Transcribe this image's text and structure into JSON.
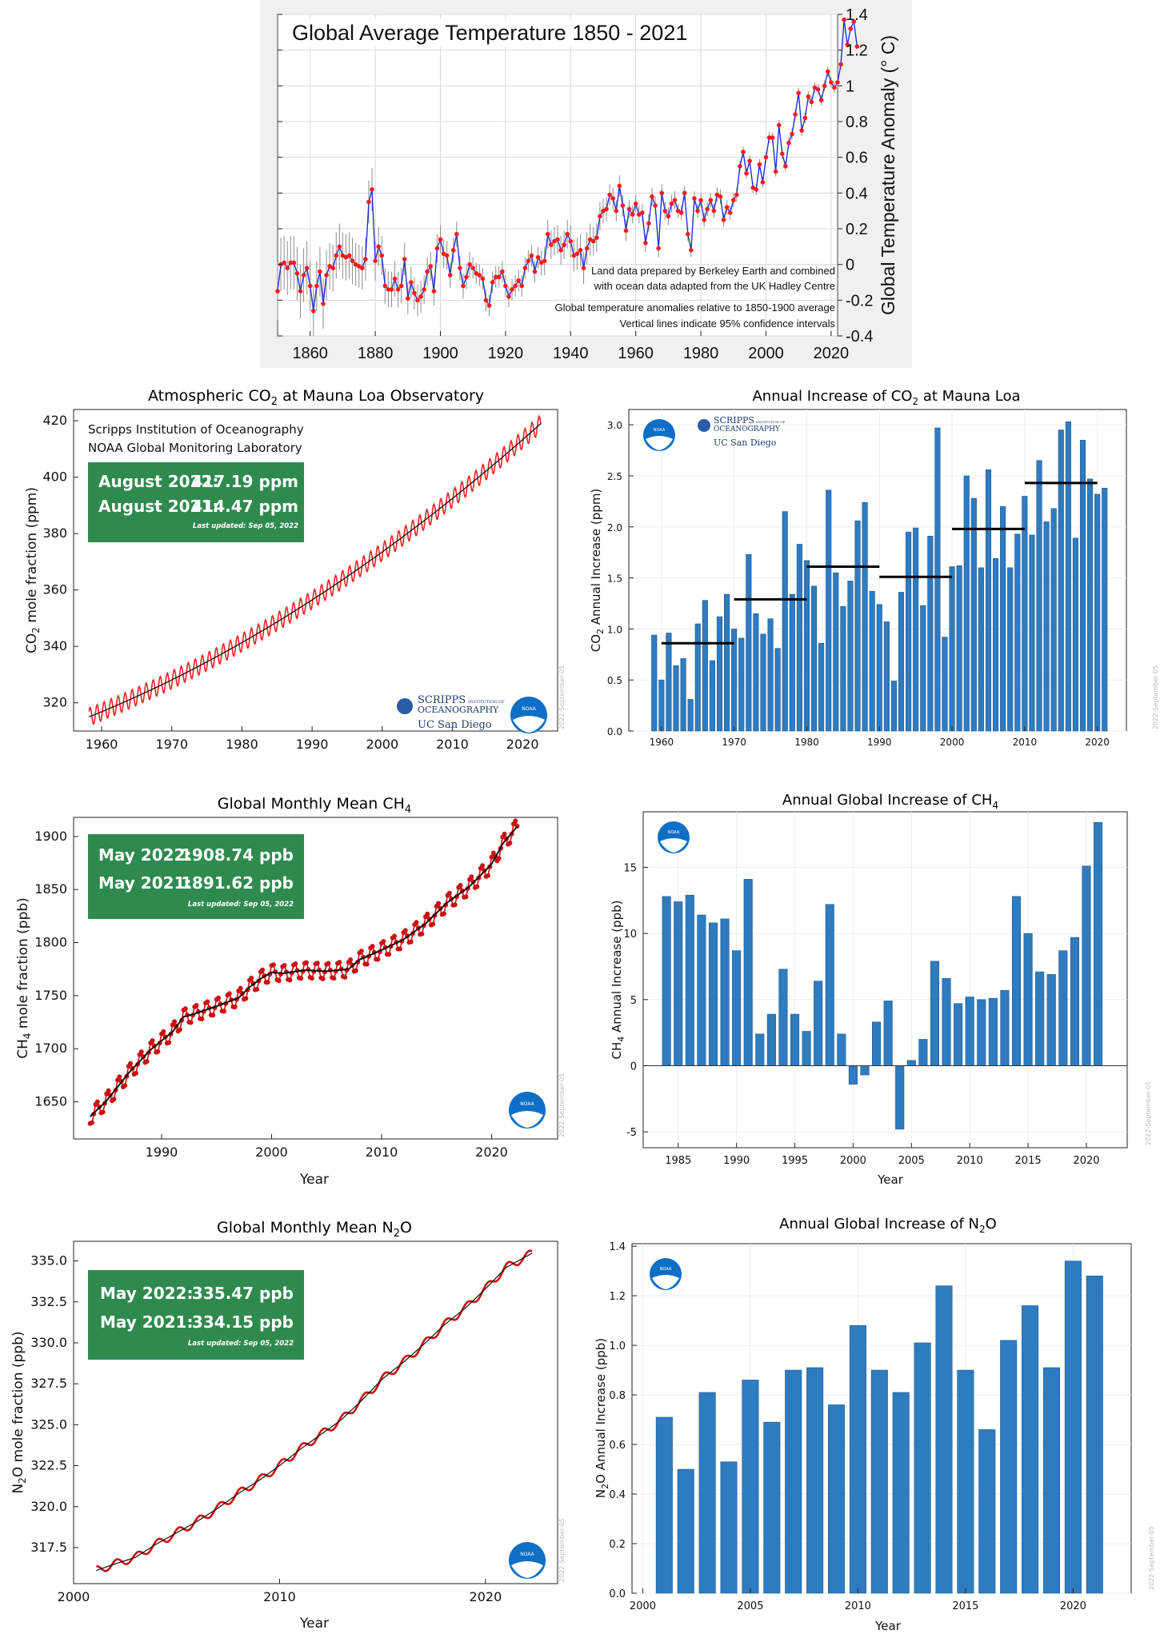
{
  "colors": {
    "temp_line": "#1f33d9",
    "temp_point": "#ff1a1a",
    "co2_red": "#ee2222",
    "bar_blue": "#2f7bbf",
    "green_box": "#2f8a4e",
    "noaa_blue": "#0f6ec6",
    "temp_bg": "#f0f0f0"
  },
  "institutions": {
    "scripps": "Scripps Institution of Oceanography",
    "noaa_gml": "NOAA Global Monitoring Laboratory"
  },
  "logos": {
    "scripps_text": "SCRIPPS",
    "scripps_sub": "OCEANOGRAPHY",
    "scripps_small": "INSTITUTION OF",
    "ucsd_text": "UC San Diego",
    "noaa_text": "NOAA"
  },
  "updated_stamp": "2022-September-05",
  "chart_data": [
    {
      "id": "temp",
      "type": "line",
      "title": "Global Average Temperature 1850 - 2021",
      "ylabel": "Global Temperature Anomaly (° C)",
      "xlim": [
        1850,
        2022
      ],
      "ylim": [
        -0.4,
        1.4
      ],
      "xticks": [
        "1860",
        "1880",
        "1900",
        "1920",
        "1940",
        "1960",
        "1980",
        "2000",
        "2020"
      ],
      "yticks": [
        "-0.4",
        "-0.2",
        "0",
        "0.2",
        "0.4",
        "0.6",
        "0.8",
        "1",
        "1.2",
        "1.4"
      ],
      "annotations": [
        "Land data prepared by Berkeley Earth and combined",
        "with ocean data adapted from the UK Hadley Centre",
        "Global temperature anomalies relative to 1850-1900 average",
        "Vertical lines indicate 95% confidence intervals"
      ],
      "start_year": 1850,
      "values": [
        -0.15,
        0.0,
        0.01,
        -0.02,
        0.01,
        0.01,
        -0.05,
        -0.15,
        -0.06,
        -0.02,
        -0.12,
        -0.26,
        -0.12,
        -0.04,
        -0.22,
        -0.06,
        -0.01,
        -0.02,
        0.05,
        0.1,
        0.05,
        0.04,
        0.05,
        0.02,
        0.0,
        -0.01,
        -0.02,
        0.03,
        0.35,
        0.42,
        0.02,
        0.1,
        0.05,
        -0.12,
        -0.14,
        -0.14,
        -0.08,
        -0.14,
        -0.12,
        0.03,
        -0.19,
        -0.1,
        -0.16,
        -0.2,
        -0.18,
        -0.14,
        -0.04,
        -0.01,
        -0.15,
        0.09,
        0.14,
        0.06,
        0.05,
        -0.06,
        0.08,
        0.17,
        -0.02,
        -0.12,
        -0.07,
        0.0,
        -0.02,
        -0.05,
        -0.06,
        -0.08,
        -0.2,
        -0.23,
        -0.1,
        -0.07,
        -0.07,
        -0.04,
        -0.12,
        -0.18,
        -0.14,
        -0.12,
        -0.09,
        -0.12,
        -0.02,
        0.02,
        0.05,
        -0.04,
        0.04,
        0.01,
        0.02,
        0.17,
        0.11,
        0.13,
        0.14,
        0.08,
        0.11,
        0.17,
        0.13,
        0.05,
        0.06,
        0.08,
        -0.02,
        0.09,
        0.14,
        0.13,
        0.15,
        0.27,
        0.3,
        0.31,
        0.39,
        0.37,
        0.3,
        0.44,
        0.33,
        0.19,
        0.31,
        0.28,
        0.34,
        0.28,
        0.29,
        0.12,
        0.23,
        0.38,
        0.33,
        0.09,
        0.4,
        0.3,
        0.27,
        0.34,
        0.36,
        0.3,
        0.29,
        0.4,
        0.17,
        0.08,
        0.37,
        0.3,
        0.36,
        0.25,
        0.31,
        0.36,
        0.3,
        0.39,
        0.38,
        0.25,
        0.32,
        0.29,
        0.36,
        0.39,
        0.55,
        0.63,
        0.51,
        0.58,
        0.43,
        0.42,
        0.56,
        0.46,
        0.6,
        0.71,
        0.71,
        0.52,
        0.78,
        0.62,
        0.55,
        0.68,
        0.73,
        0.84,
        0.96,
        0.75,
        0.82,
        0.94,
        0.91,
        0.99,
        0.98,
        0.92,
        1.0,
        1.08,
        1.02,
        0.99,
        1.02,
        1.12,
        1.37,
        1.23,
        1.32,
        1.36,
        1.22
      ],
      "ci": [
        0.16,
        0.15,
        0.15,
        0.15,
        0.15,
        0.15,
        0.15,
        0.15,
        0.15,
        0.15,
        0.14,
        0.14,
        0.14,
        0.14,
        0.14,
        0.14,
        0.13,
        0.13,
        0.13,
        0.13,
        0.13,
        0.13,
        0.13,
        0.13,
        0.12,
        0.12,
        0.12,
        0.12,
        0.12,
        0.12,
        0.11,
        0.11,
        0.11,
        0.1,
        0.1,
        0.1,
        0.1,
        0.1,
        0.1,
        0.09,
        0.09,
        0.09,
        0.09,
        0.09,
        0.09,
        0.08,
        0.08,
        0.08,
        0.08,
        0.08,
        0.08,
        0.08,
        0.08,
        0.07,
        0.07,
        0.07,
        0.07,
        0.07,
        0.07,
        0.07,
        0.06,
        0.06,
        0.06,
        0.06,
        0.06,
        0.06,
        0.06,
        0.06,
        0.06,
        0.06,
        0.06,
        0.06,
        0.06,
        0.06,
        0.06,
        0.06,
        0.06,
        0.06,
        0.06,
        0.06,
        0.06,
        0.07,
        0.08,
        0.08,
        0.08,
        0.08,
        0.08,
        0.08,
        0.08,
        0.08,
        0.09,
        0.09,
        0.09,
        0.09,
        0.09,
        0.09,
        0.09,
        0.08,
        0.08,
        0.08,
        0.07,
        0.07,
        0.06,
        0.06,
        0.06,
        0.06,
        0.06,
        0.06,
        0.05,
        0.05,
        0.05,
        0.05,
        0.05,
        0.05,
        0.05,
        0.05,
        0.05,
        0.05,
        0.05,
        0.05,
        0.05,
        0.05,
        0.05,
        0.04,
        0.04,
        0.04,
        0.04,
        0.04,
        0.04,
        0.04,
        0.04,
        0.04,
        0.04,
        0.04,
        0.04,
        0.04,
        0.04,
        0.04,
        0.04,
        0.04,
        0.04,
        0.04,
        0.03,
        0.03,
        0.03,
        0.03,
        0.03,
        0.03,
        0.03,
        0.03,
        0.03,
        0.03,
        0.03,
        0.03,
        0.03,
        0.03,
        0.03,
        0.03,
        0.03,
        0.03,
        0.03,
        0.03,
        0.03,
        0.03,
        0.03,
        0.03,
        0.03,
        0.03,
        0.03,
        0.03,
        0.03,
        0.03,
        0.03,
        0.03
      ]
    },
    {
      "id": "co2",
      "type": "line",
      "title_pre": "Atmospheric CO",
      "title_sub": "2",
      "title_post": " at Mauna Loa Observatory",
      "ylabel_pre": "CO",
      "ylabel_sub": "2",
      "ylabel_post": " mole fraction (ppm)",
      "xlim": [
        1956,
        2025
      ],
      "ylim": [
        310,
        424
      ],
      "xticks": [
        "1960",
        "1970",
        "1980",
        "1990",
        "2000",
        "2010",
        "2020"
      ],
      "yticks": [
        "320",
        "340",
        "360",
        "380",
        "400",
        "420"
      ],
      "series": [
        {
          "name": "monthly",
          "start": 1958.2,
          "end": 2022.6,
          "base_start": 315.0,
          "base_end": 419.0,
          "seasonal_amplitude": 3.2
        },
        {
          "name": "trend"
        }
      ],
      "box": {
        "line1_label": "August 2022:",
        "line1_value": "417.19 ppm",
        "line2_label": "August 2021:",
        "line2_value": "414.47 ppm",
        "updated": "Last updated: Sep 05, 2022"
      }
    },
    {
      "id": "co2inc",
      "type": "bar",
      "title_pre": "Annual Increase of CO",
      "title_sub": "2",
      "title_post": " at Mauna Loa",
      "ylabel_pre": "CO",
      "ylabel_sub": "2",
      "ylabel_post": " Annual Increase (ppm)",
      "xlim": [
        1955.5,
        2024
      ],
      "ylim": [
        0,
        3.15
      ],
      "xticks": [
        "1960",
        "1970",
        "1980",
        "1990",
        "2000",
        "2010",
        "2020"
      ],
      "yticks": [
        "0.0",
        "0.5",
        "1.0",
        "1.5",
        "2.0",
        "2.5",
        "3.0"
      ],
      "start_year": 1959,
      "values": [
        0.94,
        0.5,
        0.96,
        0.64,
        0.71,
        0.31,
        1.05,
        1.28,
        0.69,
        1.12,
        1.34,
        1.0,
        0.91,
        1.73,
        1.15,
        0.95,
        1.1,
        0.81,
        2.15,
        1.34,
        1.83,
        1.67,
        1.42,
        0.86,
        2.36,
        1.55,
        1.22,
        1.47,
        2.06,
        2.24,
        1.37,
        1.24,
        1.07,
        0.49,
        1.36,
        1.95,
        1.99,
        1.23,
        1.91,
        2.97,
        0.92,
        1.61,
        1.62,
        2.5,
        2.28,
        1.6,
        2.56,
        1.69,
        2.2,
        1.6,
        1.93,
        2.3,
        1.92,
        2.65,
        2.05,
        2.18,
        2.95,
        3.03,
        1.89,
        2.85,
        2.47,
        2.32,
        2.38
      ],
      "decade_means": [
        {
          "from": 1960,
          "to": 1970,
          "value": 0.86
        },
        {
          "from": 1970,
          "to": 1980,
          "value": 1.29
        },
        {
          "from": 1980,
          "to": 1990,
          "value": 1.61
        },
        {
          "from": 1990,
          "to": 2000,
          "value": 1.51
        },
        {
          "from": 2000,
          "to": 2010,
          "value": 1.98
        },
        {
          "from": 2010,
          "to": 2020,
          "value": 2.43
        }
      ]
    },
    {
      "id": "ch4",
      "type": "line",
      "title_pre": "Global Monthly Mean CH",
      "title_sub": "4",
      "title_post": "",
      "ylabel_pre": "CH",
      "ylabel_sub": "4",
      "ylabel_post": " mole fraction (ppb)",
      "xlabel": "Year",
      "xlim": [
        1982,
        2026
      ],
      "ylim": [
        1615,
        1918
      ],
      "xticks": [
        "1990",
        "2000",
        "2010",
        "2020"
      ],
      "yticks": [
        "1650",
        "1700",
        "1750",
        "1800",
        "1850",
        "1900"
      ],
      "trend_points": [
        [
          1983.5,
          1636
        ],
        [
          1985,
          1651
        ],
        [
          1987,
          1677
        ],
        [
          1989,
          1699
        ],
        [
          1991,
          1716
        ],
        [
          1992,
          1730
        ],
        [
          1993,
          1733
        ],
        [
          1995,
          1740
        ],
        [
          1997,
          1748
        ],
        [
          1998,
          1758
        ],
        [
          1999,
          1766
        ],
        [
          2000,
          1772
        ],
        [
          2001,
          1771
        ],
        [
          2003,
          1774
        ],
        [
          2005,
          1773
        ],
        [
          2007,
          1775
        ],
        [
          2008,
          1784
        ],
        [
          2010,
          1793
        ],
        [
          2012,
          1803
        ],
        [
          2014,
          1818
        ],
        [
          2016,
          1838
        ],
        [
          2018,
          1853
        ],
        [
          2020,
          1874
        ],
        [
          2021,
          1893
        ],
        [
          2022.3,
          1909
        ]
      ],
      "seasonal_amplitude": 8,
      "box": {
        "line1_label": "May 2022:",
        "line1_value": "1908.74 ppb",
        "line2_label": "May 2021:",
        "line2_value": "1891.62 ppb",
        "updated": "Last updated: Sep 05, 2022"
      }
    },
    {
      "id": "ch4inc",
      "type": "bar",
      "title_pre": "Annual Global Increase of CH",
      "title_sub": "4",
      "title_post": "",
      "ylabel_pre": "CH",
      "ylabel_sub": "4",
      "ylabel_post": " Annual Increase (ppb)",
      "xlabel": "Year",
      "xlim": [
        1982,
        2023.5
      ],
      "ylim": [
        -6.2,
        19.2
      ],
      "xticks": [
        "1985",
        "1990",
        "1995",
        "2000",
        "2005",
        "2010",
        "2015",
        "2020"
      ],
      "yticks": [
        "-5",
        "0",
        "5",
        "10",
        "15"
      ],
      "start_year": 1984,
      "values": [
        12.8,
        12.4,
        12.9,
        11.4,
        10.8,
        11.1,
        8.7,
        14.1,
        2.4,
        3.9,
        7.3,
        3.9,
        2.6,
        6.4,
        12.2,
        2.4,
        -1.4,
        -0.7,
        3.3,
        4.9,
        -4.8,
        0.4,
        2.0,
        7.9,
        6.6,
        4.7,
        5.2,
        5.0,
        5.1,
        5.7,
        12.8,
        10.0,
        7.1,
        6.9,
        8.7,
        9.7,
        15.1,
        18.4
      ]
    },
    {
      "id": "n2o",
      "type": "line",
      "title_pre": "Global Monthly Mean N",
      "title_sub": "2",
      "title_post": "O",
      "ylabel_pre": "N",
      "ylabel_sub": "2",
      "ylabel_post": "O mole fraction (ppb)",
      "xlabel": "Year",
      "xlim": [
        2000,
        2023.5
      ],
      "ylim": [
        315.3,
        336.2
      ],
      "xticks": [
        "2000",
        "2010",
        "2020"
      ],
      "yticks": [
        "317.5",
        "320.0",
        "322.5",
        "325.0",
        "327.5",
        "330.0",
        "332.5",
        "335.0"
      ],
      "trend_points": [
        [
          2001.1,
          316.1
        ],
        [
          2002,
          316.5
        ],
        [
          2003,
          316.9
        ],
        [
          2004,
          317.7
        ],
        [
          2005,
          318.4
        ],
        [
          2006,
          319.1
        ],
        [
          2007,
          319.9
        ],
        [
          2008,
          320.8
        ],
        [
          2009,
          321.6
        ],
        [
          2010,
          322.5
        ],
        [
          2011,
          323.5
        ],
        [
          2012,
          324.4
        ],
        [
          2013,
          325.3
        ],
        [
          2014,
          326.5
        ],
        [
          2015,
          327.8
        ],
        [
          2016,
          328.8
        ],
        [
          2017,
          329.9
        ],
        [
          2018,
          331.1
        ],
        [
          2019,
          332.1
        ],
        [
          2020,
          333.3
        ],
        [
          2021,
          334.6
        ],
        [
          2022.3,
          335.5
        ]
      ],
      "seasonal_amplitude": 0.25,
      "box": {
        "line1_label": "May 2022:",
        "line1_value": "335.47 ppb",
        "line2_label": "May 2021:",
        "line2_value": "334.15 ppb",
        "updated": "Last updated: Sep 05, 2022"
      }
    },
    {
      "id": "n2oinc",
      "type": "bar",
      "title_pre": "Annual Global Increase of N",
      "title_sub": "2",
      "title_post": "O",
      "ylabel_pre": "N",
      "ylabel_sub": "2",
      "ylabel_post": "O Annual Increase (ppb)",
      "xlabel": "Year",
      "xlim": [
        1999.5,
        2022.7
      ],
      "ylim": [
        0,
        1.41
      ],
      "xticks": [
        "2000",
        "2005",
        "2010",
        "2015",
        "2020"
      ],
      "yticks": [
        "0.0",
        "0.2",
        "0.4",
        "0.6",
        "0.8",
        "1.0",
        "1.2",
        "1.4"
      ],
      "start_year": 2001,
      "values": [
        0.71,
        0.5,
        0.81,
        0.53,
        0.86,
        0.69,
        0.9,
        0.91,
        0.76,
        1.08,
        0.9,
        0.81,
        1.01,
        1.24,
        0.9,
        0.66,
        1.02,
        1.16,
        0.91,
        1.34,
        1.28
      ]
    }
  ]
}
